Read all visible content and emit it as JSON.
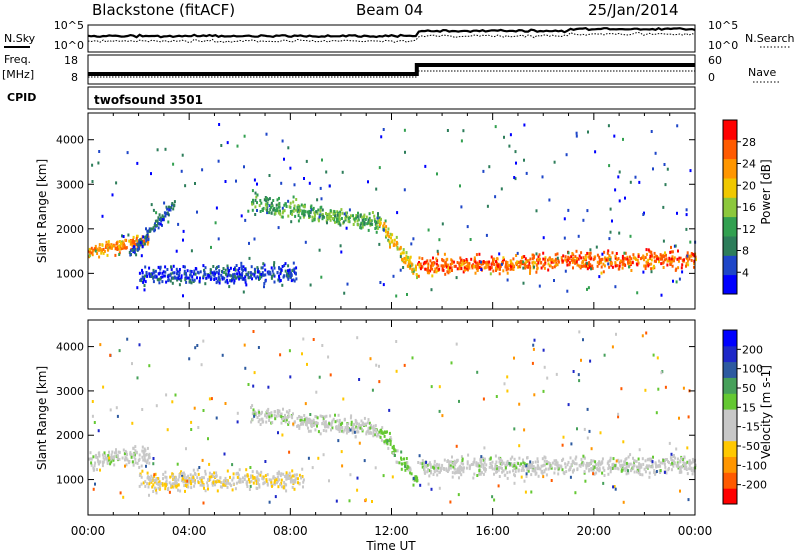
{
  "header": {
    "station": "Blackstone (fitACF)",
    "beam": "Beam 04",
    "date": "25/Jan/2014"
  },
  "left_labels": {
    "nsky": "N.Sky",
    "freq": "Freq.",
    "mhz": "[MHz]",
    "cpid": "CPID"
  },
  "right_labels": {
    "nsearch": "N.Search",
    "nave": "Nave"
  },
  "noise_panel": {
    "ticks_left": [
      "10^5",
      "10^0"
    ],
    "ticks_right": [
      "10^5",
      "10^0"
    ]
  },
  "freq_panel": {
    "ticks_left": [
      "18",
      "8"
    ],
    "ticks_right": [
      "60",
      "0"
    ],
    "cpid_label": "twofsound 3501"
  },
  "colors": {
    "power": [
      "#0000ff",
      "#1e46c8",
      "#2d7d5a",
      "#32a050",
      "#8cc83c",
      "#f0c800",
      "#ff9600",
      "#ff5a00",
      "#ff0000"
    ],
    "velocity": [
      "#ff0000",
      "#ff5a00",
      "#ff9600",
      "#ffc800",
      "#c8c8c8",
      "#c8c8c8",
      "#64c832",
      "#46a05a",
      "#2d5aa0",
      "#1e28c8",
      "#0000ff"
    ]
  },
  "chart_data": [
    {
      "type": "heatmap",
      "panel": "power",
      "ylabel": "Slant Range [km]",
      "ylim": [
        200,
        4600
      ],
      "yticks": [
        "1000",
        "2000",
        "3000",
        "4000"
      ],
      "xlim": [
        0,
        24
      ],
      "xticks": [
        "00:00",
        "04:00",
        "08:00",
        "12:00",
        "16:00",
        "20:00",
        "00:00"
      ],
      "colorbar": {
        "label": "Power [dB]",
        "ticks": [
          "4",
          "8",
          "12",
          "16",
          "20",
          "24",
          "28"
        ],
        "range": [
          0,
          30
        ]
      },
      "bands": [
        {
          "t0": 0.0,
          "t1": 2.4,
          "r0": 1500,
          "r1": 1800,
          "width": 200,
          "level": 26
        },
        {
          "t0": 1.6,
          "t1": 3.4,
          "r0": 1450,
          "r1": 2600,
          "width": 200,
          "level": 10
        },
        {
          "t0": 2.0,
          "t1": 8.2,
          "r0": 1000,
          "r1": 1000,
          "width": 300,
          "level": 8
        },
        {
          "t0": 6.4,
          "t1": 11.5,
          "r0": 2600,
          "r1": 2150,
          "width": 300,
          "level": 16
        },
        {
          "t0": 11.5,
          "t1": 13.0,
          "r0": 2150,
          "r1": 1000,
          "width": 300,
          "level": 22
        },
        {
          "t0": 13.0,
          "t1": 24.0,
          "r0": 1200,
          "r1": 1350,
          "width": 300,
          "level": 28
        }
      ]
    },
    {
      "type": "heatmap",
      "panel": "velocity",
      "ylabel": "Slant Range [km]",
      "ylim": [
        200,
        4600
      ],
      "yticks": [
        "1000",
        "2000",
        "3000",
        "4000"
      ],
      "xlim": [
        0,
        24
      ],
      "xticks": [
        "00:00",
        "04:00",
        "08:00",
        "12:00",
        "16:00",
        "20:00",
        "00:00"
      ],
      "xlabel": "Time UT",
      "colorbar": {
        "label": "Velocity [m s-1]",
        "ticks": [
          "-200",
          "-100",
          "-50",
          "-15",
          "15",
          "50",
          "100",
          "200"
        ],
        "range": [
          -250,
          250
        ]
      },
      "bands": [
        {
          "t0": 0.0,
          "t1": 2.4,
          "r0": 1450,
          "r1": 1600,
          "width": 300,
          "level": 0
        },
        {
          "t0": 2.0,
          "t1": 8.5,
          "r0": 1000,
          "r1": 1050,
          "width": 300,
          "level": -60
        },
        {
          "t0": 6.4,
          "t1": 11.5,
          "r0": 2500,
          "r1": 2150,
          "width": 300,
          "level": 0
        },
        {
          "t0": 11.5,
          "t1": 13.0,
          "r0": 2150,
          "r1": 1000,
          "width": 300,
          "level": 40
        },
        {
          "t0": 13.0,
          "t1": 24.0,
          "r0": 1300,
          "r1": 1350,
          "width": 300,
          "level": 0
        }
      ]
    }
  ]
}
